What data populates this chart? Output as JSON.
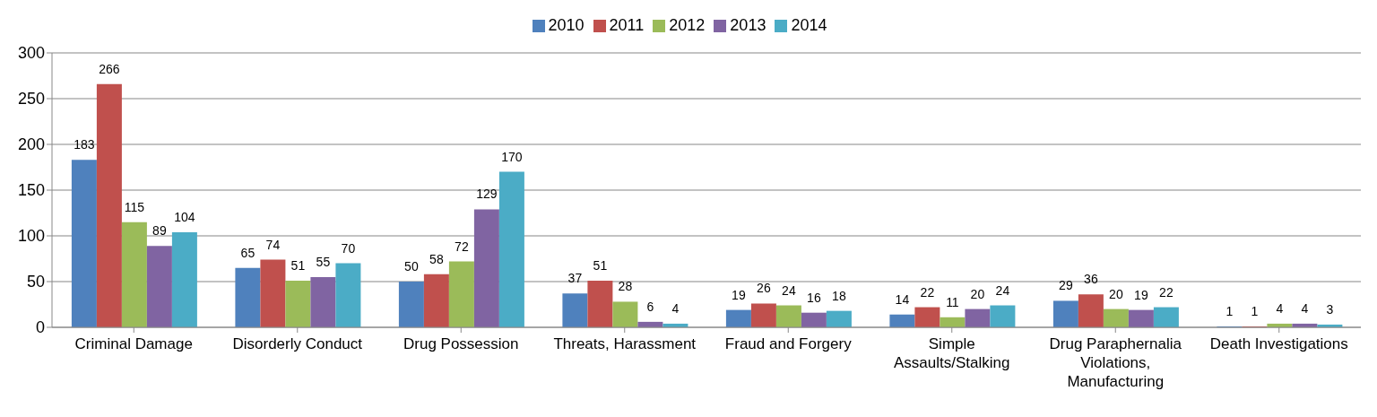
{
  "chart_data": {
    "type": "bar",
    "categories": [
      "Criminal Damage",
      "Disorderly Conduct",
      "Drug Possession",
      "Threats, Harassment",
      "Fraud and Forgery",
      "Simple Assaults/Stalking",
      "Drug Paraphernalia Violations, Manufacturing",
      "Death Investigations"
    ],
    "series": [
      {
        "name": "2010",
        "color": "#4f81bd",
        "values": [
          183,
          65,
          50,
          37,
          19,
          14,
          29,
          1
        ]
      },
      {
        "name": "2011",
        "color": "#c0504d",
        "values": [
          266,
          74,
          58,
          51,
          26,
          22,
          36,
          1
        ]
      },
      {
        "name": "2012",
        "color": "#9bbb59",
        "values": [
          115,
          51,
          72,
          28,
          24,
          11,
          20,
          4
        ]
      },
      {
        "name": "2013",
        "color": "#8064a2",
        "values": [
          89,
          55,
          129,
          6,
          16,
          20,
          19,
          4
        ]
      },
      {
        "name": "2014",
        "color": "#4bacc6",
        "values": [
          104,
          70,
          170,
          4,
          18,
          24,
          22,
          3
        ]
      }
    ],
    "ylim": [
      0,
      300
    ],
    "yticks": [
      0,
      50,
      100,
      150,
      200,
      250,
      300
    ],
    "grid": "y",
    "legend": "top",
    "data_labels": true
  }
}
